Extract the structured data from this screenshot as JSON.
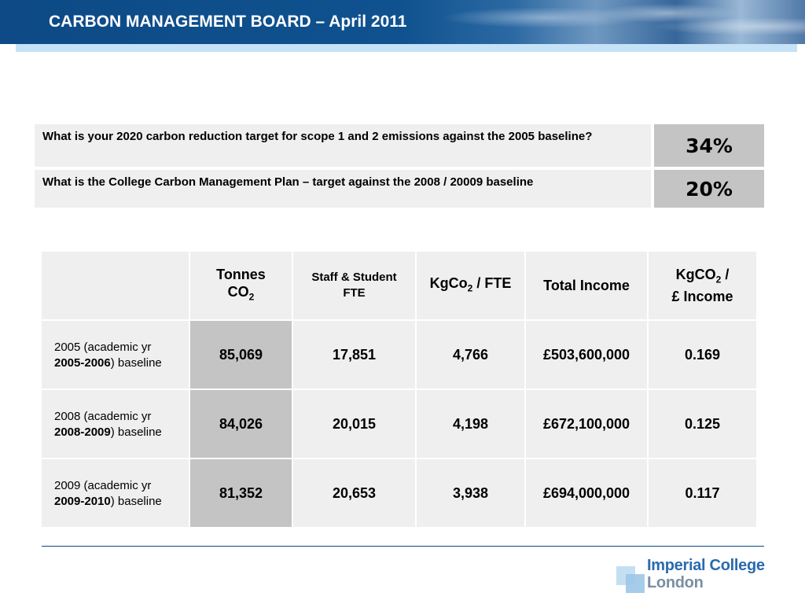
{
  "header": {
    "title": "CARBON MANAGEMENT BOARD – April 2011"
  },
  "targets": [
    {
      "question": "What is your 2020 carbon reduction target for scope 1 and 2 emissions against the 2005 baseline?",
      "answer": "34%"
    },
    {
      "question": "What is the College Carbon Management Plan – target against the 2008 / 20009 baseline",
      "answer": "20%"
    }
  ],
  "table": {
    "headers": {
      "tonnes_line1": "Tonnes",
      "tonnes_line2": "CO",
      "tonnes_sub": "2",
      "fte_line1": "Staff & Student",
      "fte_line2": "FTE",
      "kg_fte_pre": "KgCo",
      "kg_fte_sub": "2",
      "kg_fte_post": " / FTE",
      "income": "Total Income",
      "kg_inc_pre": "KgCO",
      "kg_inc_sub": "2",
      "kg_inc_post": " /",
      "kg_inc_line2": "£ Income"
    },
    "rows": [
      {
        "label_line1": "2005 (academic yr",
        "label_bold": "2005-2006",
        "label_tail": ") baseline",
        "tonnes": "85,069",
        "fte": "17,851",
        "kg_fte": "4,766",
        "income": "£503,600,000",
        "kg_income": "0.169"
      },
      {
        "label_line1": "2008 (academic yr",
        "label_bold": "2008-2009",
        "label_tail": ") baseline",
        "tonnes": "84,026",
        "fte": "20,015",
        "kg_fte": "4,198",
        "income": "£672,100,000",
        "kg_income": "0.125"
      },
      {
        "label_line1": "2009 (academic yr",
        "label_bold": "2009-2010",
        "label_tail": ") baseline",
        "tonnes": "81,352",
        "fte": "20,653",
        "kg_fte": "3,938",
        "income": "£694,000,000",
        "kg_income": "0.117"
      }
    ]
  },
  "logo": {
    "line1": "Imperial College",
    "line2": "London"
  },
  "colors": {
    "header_blue": "#0d4a86",
    "header_strip": "#c5e2f6",
    "cell_light": "#efefef",
    "cell_dark": "#c4c4c4",
    "logo_blue": "#2a6ab0",
    "logo_grey": "#7a8ea3"
  }
}
